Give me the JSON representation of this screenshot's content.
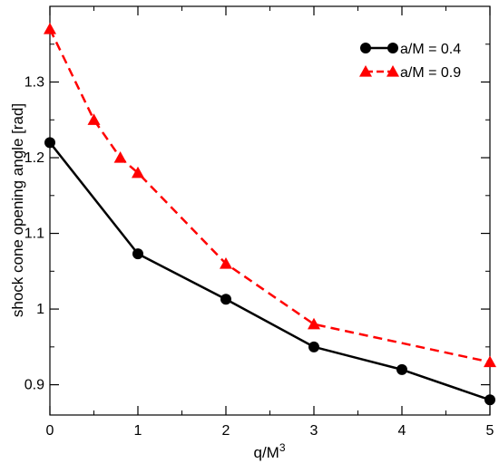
{
  "chart_data": {
    "type": "line",
    "title": "",
    "xlabel": {
      "base": "q/M",
      "superscript": "3"
    },
    "ylabel": "shock cone opening angle [rad]",
    "xlim": [
      0,
      5
    ],
    "ylim": [
      0.86,
      1.4
    ],
    "x_ticks": [
      "0",
      "1",
      "2",
      "3",
      "4",
      "5"
    ],
    "y_ticks": [
      "0.9",
      "1",
      "1.1",
      "1.2",
      "1.3"
    ],
    "grid": false,
    "legend_position": "top-right",
    "series": [
      {
        "name": "a/M = 0.4",
        "color": "#000000",
        "marker": "circle",
        "line_style": "solid",
        "x": [
          0,
          1,
          2,
          3,
          4,
          5
        ],
        "y": [
          1.22,
          1.073,
          1.013,
          0.95,
          0.92,
          0.88
        ]
      },
      {
        "name": "a/M = 0.9",
        "color": "#ff0000",
        "marker": "triangle",
        "line_style": "dashed",
        "x": [
          0,
          0.5,
          0.8,
          1,
          2,
          3,
          5
        ],
        "y": [
          1.37,
          1.25,
          1.2,
          1.18,
          1.06,
          0.98,
          0.93
        ]
      }
    ]
  }
}
